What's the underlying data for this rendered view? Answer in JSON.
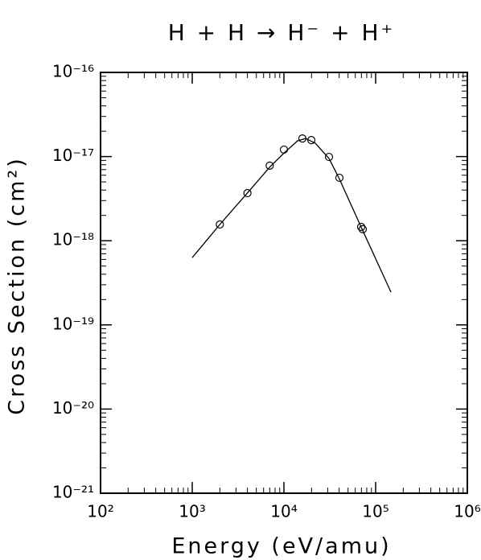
{
  "chart_data": {
    "type": "scatter",
    "title": "H + H → H⁻ + H⁺",
    "x_label": "Energy (eV/amu)",
    "y_label": "Cross Section (cm²)",
    "x_scale": "log",
    "y_scale": "log",
    "xlim": [
      100,
      1000000
    ],
    "ylim": [
      1e-21,
      1e-16
    ],
    "xticks": [
      {
        "value": 100,
        "label": "10²"
      },
      {
        "value": 1000,
        "label": "10³"
      },
      {
        "value": 10000,
        "label": "10⁴"
      },
      {
        "value": 100000,
        "label": "10⁵"
      },
      {
        "value": 1000000,
        "label": "10⁶"
      }
    ],
    "yticks": [
      {
        "value": 1e-21,
        "label": "10⁻²¹"
      },
      {
        "value": 1e-20,
        "label": "10⁻²⁰"
      },
      {
        "value": 1e-19,
        "label": "10⁻¹⁹"
      },
      {
        "value": 1e-18,
        "label": "10⁻¹⁸"
      },
      {
        "value": 1e-17,
        "label": "10⁻¹⁷"
      },
      {
        "value": 1e-16,
        "label": "10⁻¹⁶"
      }
    ],
    "grid": false,
    "series": [
      {
        "marker": "none",
        "color": "#000000",
        "x": [
          1000,
          2000,
          4000,
          7000,
          10000,
          14100,
          17300,
          22000,
          31000,
          40000,
          70000,
          147000
        ],
        "values": [
          6.3e-19,
          1.56e-18,
          3.7e-18,
          7.5e-18,
          1.1e-17,
          1.54e-17,
          1.64e-17,
          1.44e-17,
          9.5e-18,
          5.5e-18,
          1.43e-18,
          2.45e-19
        ]
      },
      {
        "marker": "circle",
        "color": "#000000",
        "x": [
          2000,
          4000,
          7000,
          10000,
          15900,
          19900,
          31000,
          40300,
          69500,
          72400
        ],
        "values": [
          1.56e-18,
          3.68e-18,
          7.8e-18,
          1.21e-17,
          1.64e-17,
          1.57e-17,
          9.9e-18,
          5.6e-18,
          1.46e-18,
          1.37e-18
        ]
      }
    ]
  }
}
